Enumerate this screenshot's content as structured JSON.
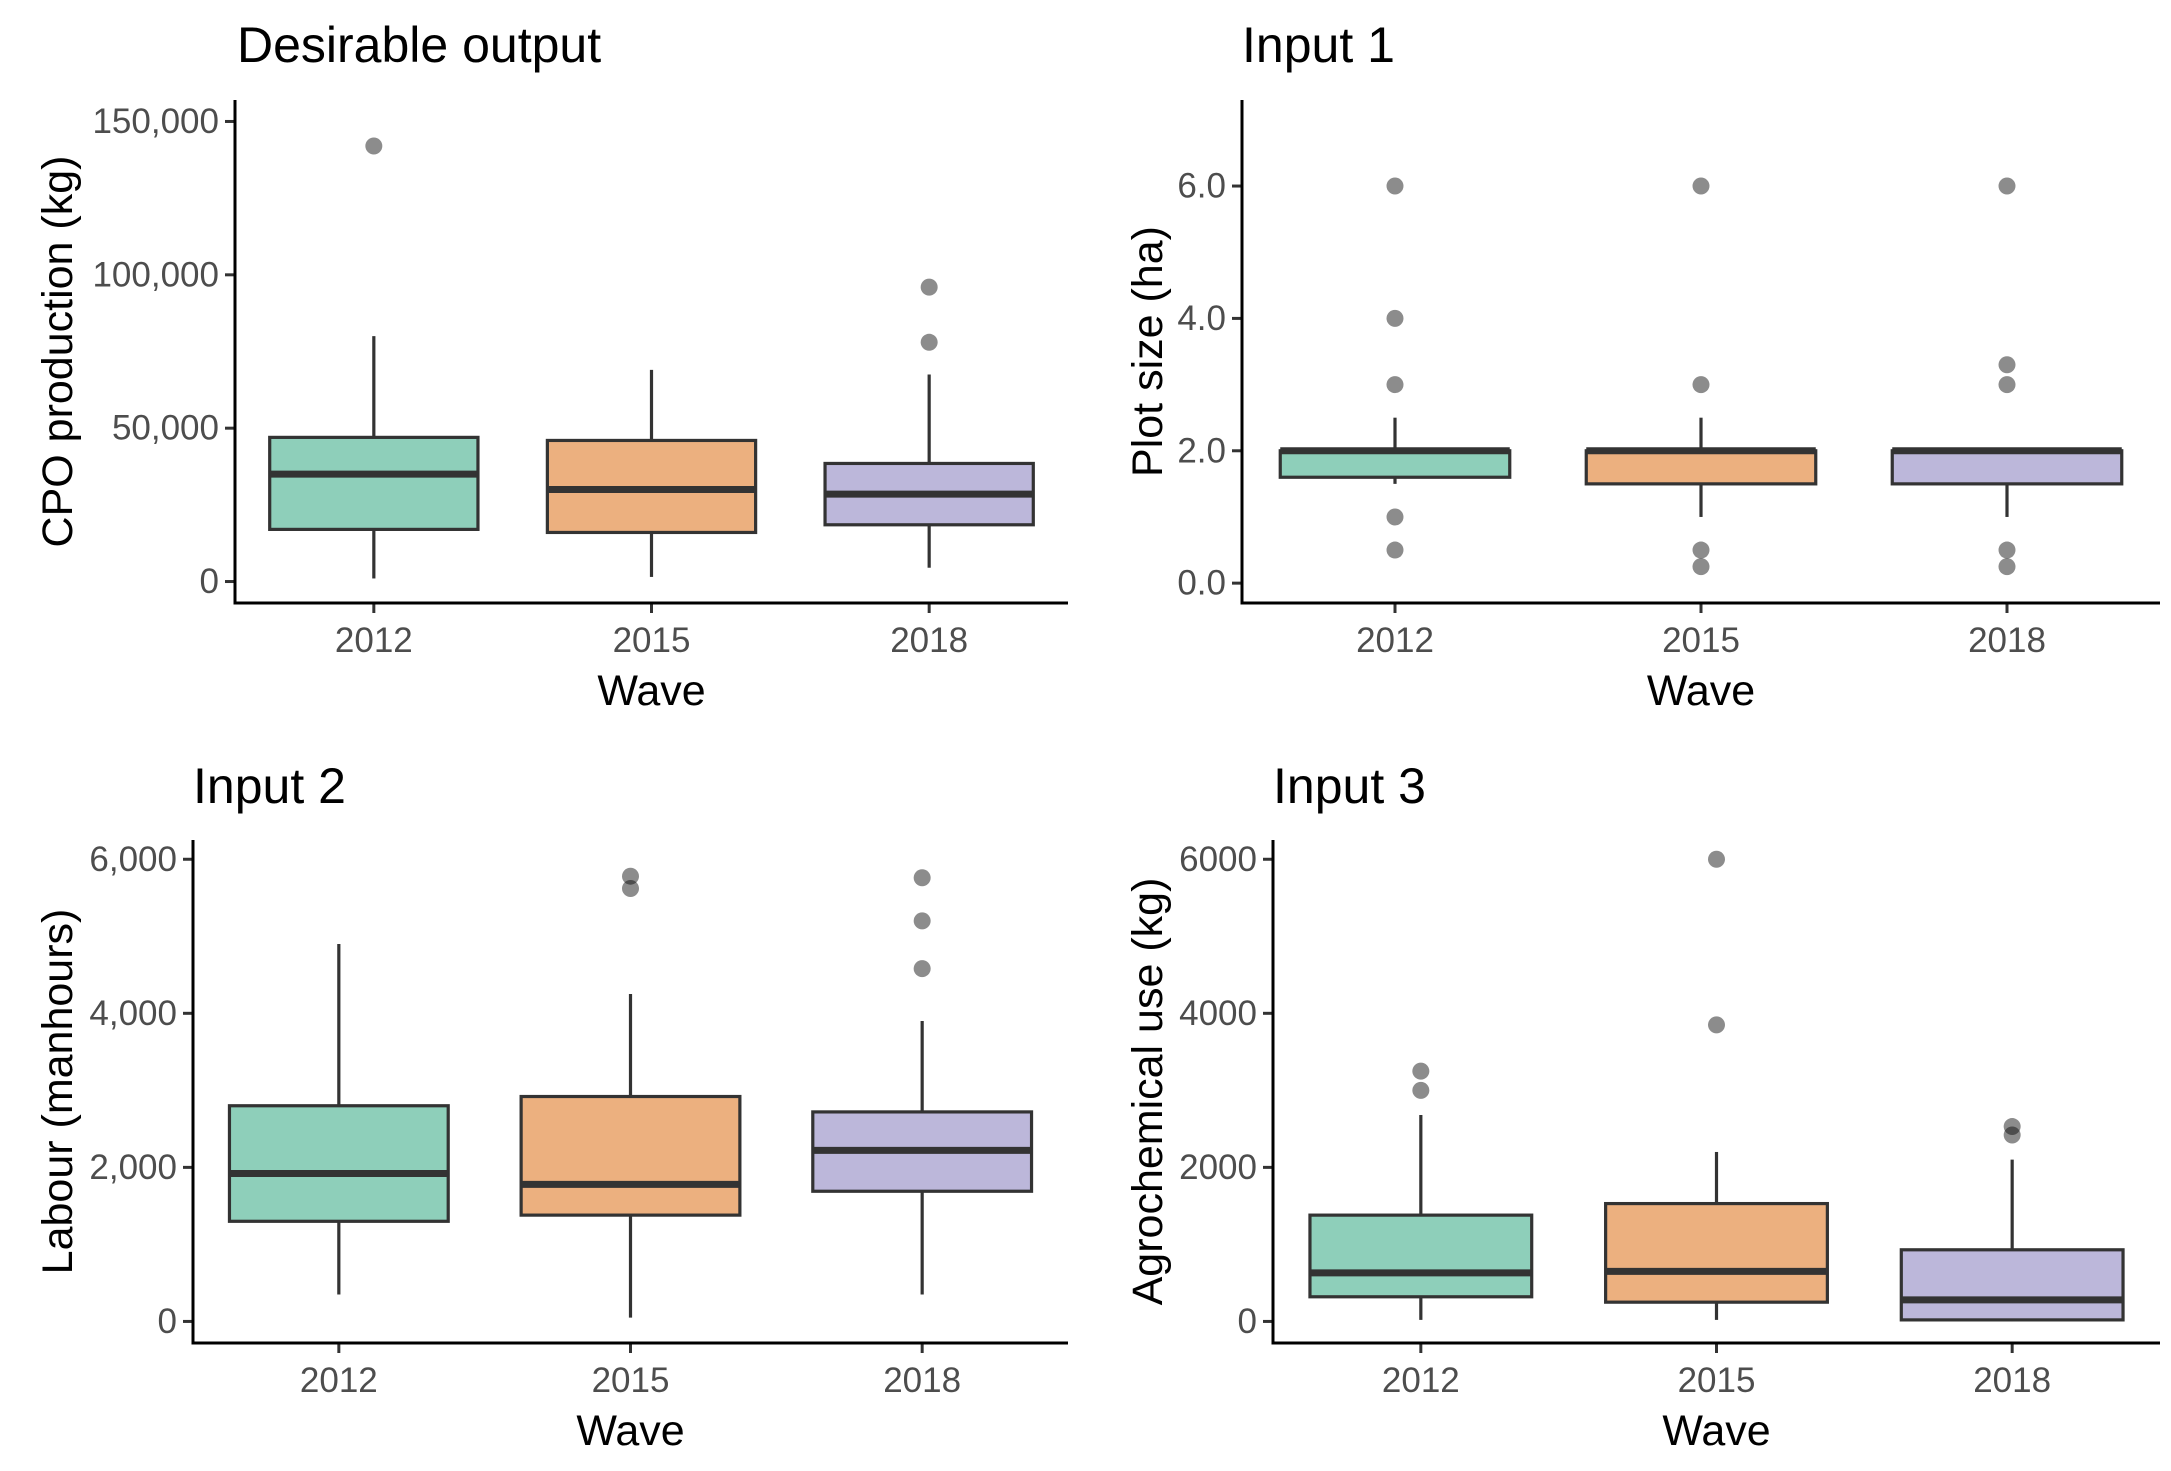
{
  "chart_data": [
    {
      "type": "box",
      "title": "Desirable output",
      "xlabel": "Wave",
      "ylabel": "CPO production (kg)",
      "categories": [
        "2012",
        "2015",
        "2018"
      ],
      "ylim": [
        -7000,
        157000
      ],
      "yticks": [
        0,
        50000,
        100000,
        150000
      ],
      "ytick_labels": [
        "0",
        "50,000",
        "100,000",
        "150,000"
      ],
      "colors": [
        "#8ecfba",
        "#ecb07f",
        "#bcb7da"
      ],
      "boxes": [
        {
          "category": "2012",
          "whisker_low": 1000,
          "q1": 17000,
          "median": 35000,
          "q3": 47000,
          "whisker_high": 80000,
          "outliers": [
            142000
          ]
        },
        {
          "category": "2015",
          "whisker_low": 1500,
          "q1": 16000,
          "median": 30000,
          "q3": 46000,
          "whisker_high": 69000,
          "outliers": []
        },
        {
          "category": "2018",
          "whisker_low": 4500,
          "q1": 18500,
          "median": 28500,
          "q3": 38500,
          "whisker_high": 67500,
          "outliers": [
            78000,
            96000
          ]
        }
      ]
    },
    {
      "type": "box",
      "title": "Input 1",
      "xlabel": "Wave",
      "ylabel": "Plot size (ha)",
      "categories": [
        "2012",
        "2015",
        "2018"
      ],
      "ylim": [
        -0.3,
        7.3
      ],
      "yticks": [
        0,
        2,
        4,
        6
      ],
      "ytick_labels": [
        "0.0",
        "2.0",
        "4.0",
        "6.0"
      ],
      "colors": [
        "#8ecfba",
        "#ecb07f",
        "#bcb7da"
      ],
      "boxes": [
        {
          "category": "2012",
          "whisker_low": 1.5,
          "q1": 1.6,
          "median": 2.0,
          "q3": 2.0,
          "whisker_high": 2.5,
          "outliers": [
            0.5,
            1.0,
            3.0,
            4.0,
            6.0
          ]
        },
        {
          "category": "2015",
          "whisker_low": 1.0,
          "q1": 1.5,
          "median": 2.0,
          "q3": 2.0,
          "whisker_high": 2.5,
          "outliers": [
            0.25,
            0.5,
            3.0,
            6.0
          ]
        },
        {
          "category": "2018",
          "whisker_low": 1.0,
          "q1": 1.5,
          "median": 2.0,
          "q3": 2.0,
          "whisker_high": 2.0,
          "outliers": [
            0.25,
            0.5,
            3.0,
            3.3,
            6.0
          ]
        }
      ]
    },
    {
      "type": "box",
      "title": "Input 2",
      "xlabel": "Wave",
      "ylabel": "Labour (manhours)",
      "categories": [
        "2012",
        "2015",
        "2018"
      ],
      "ylim": [
        -280,
        6250
      ],
      "yticks": [
        0,
        2000,
        4000,
        6000
      ],
      "ytick_labels": [
        "0",
        "2,000",
        "4,000",
        "6,000"
      ],
      "colors": [
        "#8ecfba",
        "#ecb07f",
        "#bcb7da"
      ],
      "boxes": [
        {
          "category": "2012",
          "whisker_low": 350,
          "q1": 1300,
          "median": 1920,
          "q3": 2800,
          "whisker_high": 4900,
          "outliers": []
        },
        {
          "category": "2015",
          "whisker_low": 50,
          "q1": 1380,
          "median": 1780,
          "q3": 2920,
          "whisker_high": 4250,
          "outliers": [
            5620,
            5780
          ]
        },
        {
          "category": "2018",
          "whisker_low": 350,
          "q1": 1690,
          "median": 2220,
          "q3": 2720,
          "whisker_high": 3900,
          "outliers": [
            4580,
            5200,
            5760
          ]
        }
      ]
    },
    {
      "type": "box",
      "title": "Input 3",
      "xlabel": "Wave",
      "ylabel": "Agrochemical use (kg)",
      "categories": [
        "2012",
        "2015",
        "2018"
      ],
      "ylim": [
        -280,
        6250
      ],
      "yticks": [
        0,
        2000,
        4000,
        6000
      ],
      "ytick_labels": [
        "0",
        "2000",
        "4000",
        "6000"
      ],
      "colors": [
        "#8ecfba",
        "#ecb07f",
        "#bcb7da"
      ],
      "boxes": [
        {
          "category": "2012",
          "whisker_low": 20,
          "q1": 320,
          "median": 630,
          "q3": 1380,
          "whisker_high": 2680,
          "outliers": [
            3000,
            3250
          ]
        },
        {
          "category": "2015",
          "whisker_low": 20,
          "q1": 250,
          "median": 650,
          "q3": 1530,
          "whisker_high": 2200,
          "outliers": [
            3850,
            6000
          ]
        },
        {
          "category": "2018",
          "whisker_low": 0,
          "q1": 20,
          "median": 280,
          "q3": 930,
          "whisker_high": 2100,
          "outliers": [
            2420,
            2530
          ]
        }
      ]
    }
  ]
}
